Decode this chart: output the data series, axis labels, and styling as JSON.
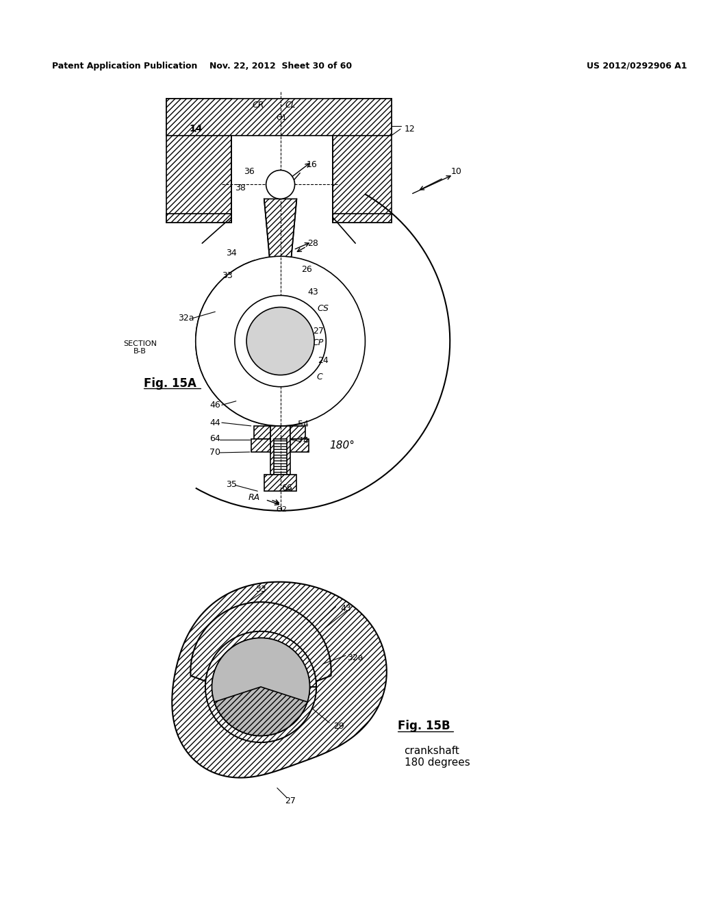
{
  "title_left": "Patent Application Publication",
  "title_center": "Nov. 22, 2012  Sheet 30 of 60",
  "title_right": "US 2012/0292906 A1",
  "fig_label_A": "Fig. 15A",
  "fig_label_B": "Fig. 15B",
  "section_label": "SECTION\nB-B",
  "crankshaft_label": "crankshaft\n180 degrees",
  "labels": [
    "CR",
    "CL",
    "14",
    "12",
    "10",
    "36",
    "16",
    "38",
    "34",
    "28",
    "33",
    "26",
    "43",
    "CS",
    "32a",
    "27",
    "CP",
    "24",
    "C",
    "46",
    "44",
    "54",
    "64",
    "74",
    "70",
    "35",
    "RA",
    "66",
    "33",
    "43",
    "32a",
    "29",
    "27"
  ],
  "angle_label_1": "Θ1",
  "angle_label_2": "Θ2",
  "angle_180": "180°",
  "bg_color": "#ffffff",
  "line_color": "#000000",
  "hatch_color": "#000000",
  "hatch_pattern": "////"
}
